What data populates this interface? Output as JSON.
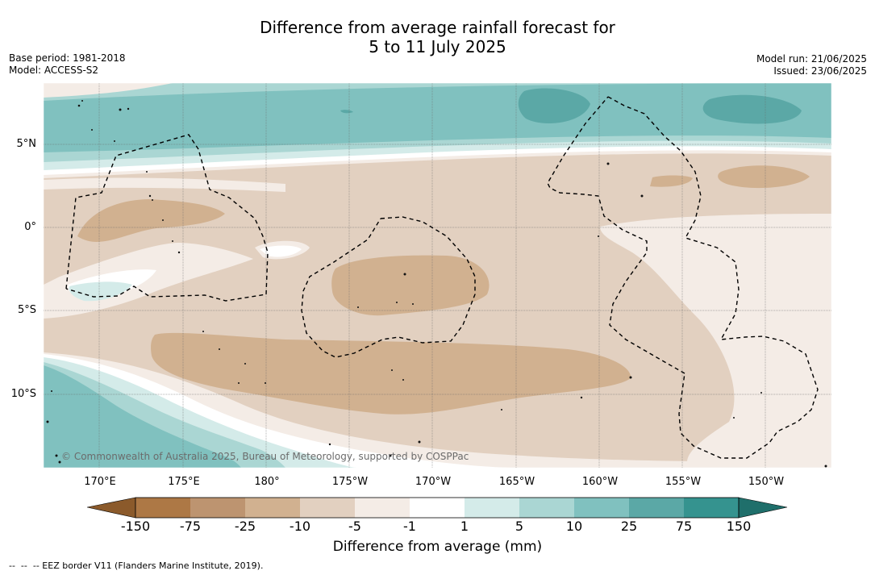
{
  "title": {
    "line1": "Difference from average rainfall forecast for",
    "line2": "5 to 11 July 2025"
  },
  "meta_left": {
    "base_period": "Base period: 1981-2018",
    "model": "Model: ACCESS-S2"
  },
  "meta_right": {
    "model_run": "Model run: 21/06/2025",
    "issued": "Issued: 23/06/2025"
  },
  "map": {
    "longitude_labels": [
      "170°E",
      "175°E",
      "180°",
      "175°W",
      "170°W",
      "165°W",
      "160°W",
      "155°W",
      "150°W"
    ],
    "latitude_labels": [
      "5°N",
      "0°",
      "5°S",
      "10°S"
    ],
    "copyright": "© Commonwealth of Australia 2025, Bureau of Meteorology, supported by COSPPac",
    "eez_border_style": "dashed black"
  },
  "colorbar": {
    "ticks": [
      "-150",
      "-75",
      "-25",
      "-10",
      "-5",
      "-1",
      "1",
      "5",
      "10",
      "25",
      "75",
      "150"
    ],
    "colors": [
      "#8b5a2b",
      "#ad7845",
      "#bd9470",
      "#d1b190",
      "#e2d0c0",
      "#f4ece6",
      "#ffffff",
      "#d4ebe9",
      "#aad6d3",
      "#80c1bf",
      "#5ba8a6",
      "#35938f",
      "#1f6f6b"
    ],
    "label": "Difference from average (mm)"
  },
  "footnote": "--  --  -- EEZ border V11 (Flanders Marine Institute, 2019)."
}
